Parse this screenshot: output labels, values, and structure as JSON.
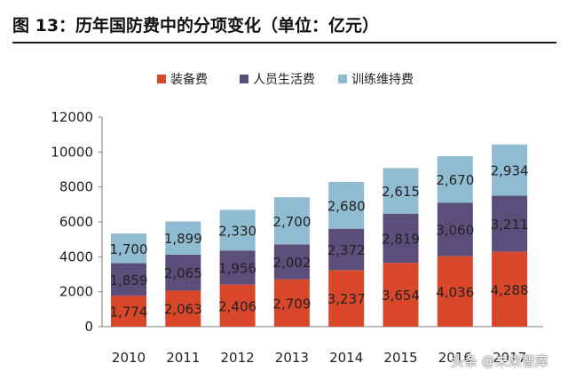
{
  "page": {
    "title": "图 13：历年国防费中的分项变化（单位：亿元）"
  },
  "watermark": "头条 @未来智库",
  "chart_data": {
    "type": "bar",
    "stacked": true,
    "categories": [
      "2010",
      "2011",
      "2012",
      "2013",
      "2014",
      "2015",
      "2016",
      "2017"
    ],
    "series": [
      {
        "name": "装备费",
        "color": "#d9472b",
        "values": [
          1774,
          2063,
          2406,
          2709,
          3237,
          3654,
          4036,
          4288
        ]
      },
      {
        "name": "人员生活费",
        "color": "#5c4e7a",
        "values": [
          1859,
          2065,
          1956,
          2002,
          2372,
          2819,
          3060,
          3211
        ]
      },
      {
        "name": "训练维持费",
        "color": "#8fbcd1",
        "values": [
          1700,
          1899,
          2330,
          2700,
          2680,
          2615,
          2670,
          2934
        ]
      }
    ],
    "data_labels": [
      [
        "1,774",
        "2,063",
        "2,406",
        "2,709",
        "3,237",
        "3,654",
        "4,036",
        "4,288"
      ],
      [
        "1,859",
        "2,065",
        "1,956",
        "2,002",
        "2,372",
        "2,819",
        "3,060",
        "3,211"
      ],
      [
        "1,700",
        "1,899",
        "2,330",
        "2,700",
        "2,680",
        "2,615",
        "2,670",
        "2,934"
      ]
    ],
    "ylim": [
      0,
      12000
    ],
    "yticks": [
      0,
      2000,
      4000,
      6000,
      8000,
      10000,
      12000
    ],
    "legend_position": "top-center",
    "grid": false
  }
}
